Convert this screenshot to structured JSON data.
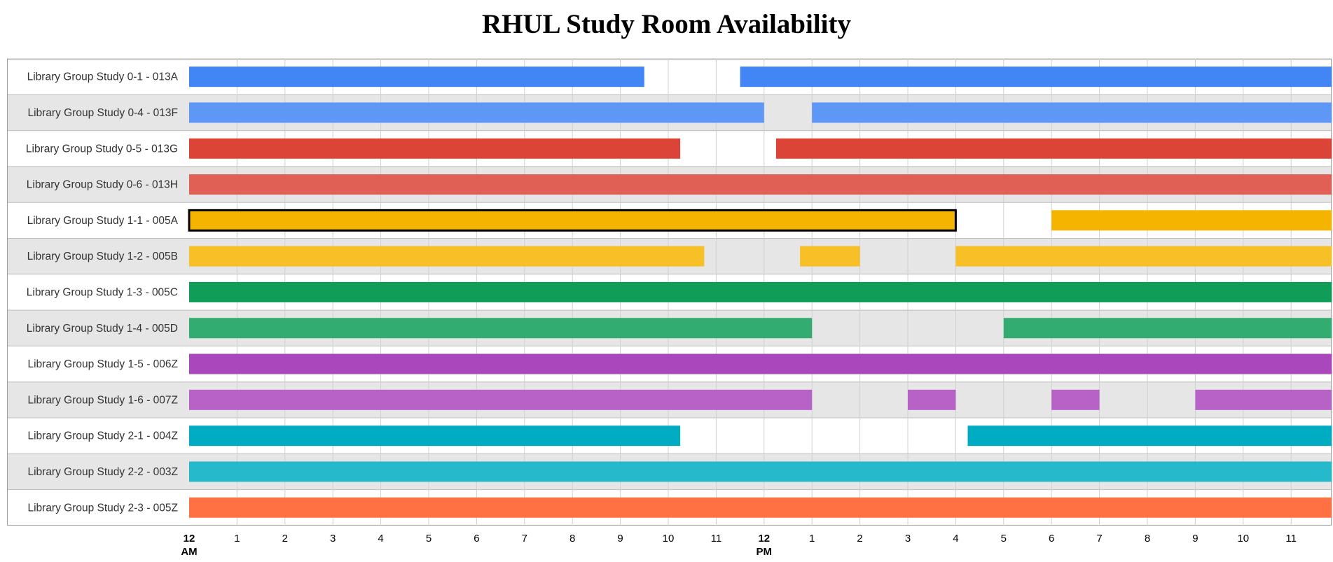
{
  "chart_data": {
    "type": "timeline",
    "title": "RHUL Study Room Availability",
    "x_range_hours": [
      0,
      24
    ],
    "tick_labels": [
      {
        "hour": 0,
        "label": "12",
        "sublabel": "AM",
        "bold": true
      },
      {
        "hour": 1,
        "label": "1"
      },
      {
        "hour": 2,
        "label": "2"
      },
      {
        "hour": 3,
        "label": "3"
      },
      {
        "hour": 4,
        "label": "4"
      },
      {
        "hour": 5,
        "label": "5"
      },
      {
        "hour": 6,
        "label": "6"
      },
      {
        "hour": 7,
        "label": "7"
      },
      {
        "hour": 8,
        "label": "8"
      },
      {
        "hour": 9,
        "label": "9"
      },
      {
        "hour": 10,
        "label": "10"
      },
      {
        "hour": 11,
        "label": "11"
      },
      {
        "hour": 12,
        "label": "12",
        "sublabel": "PM",
        "bold": true
      },
      {
        "hour": 13,
        "label": "1"
      },
      {
        "hour": 14,
        "label": "2"
      },
      {
        "hour": 15,
        "label": "3"
      },
      {
        "hour": 16,
        "label": "4"
      },
      {
        "hour": 17,
        "label": "5"
      },
      {
        "hour": 18,
        "label": "6"
      },
      {
        "hour": 19,
        "label": "7"
      },
      {
        "hour": 20,
        "label": "8"
      },
      {
        "hour": 21,
        "label": "9"
      },
      {
        "hour": 22,
        "label": "10"
      },
      {
        "hour": 23,
        "label": "11"
      }
    ],
    "rows": [
      {
        "label": "Library Group Study 0-1 - 013A",
        "color": "#4285f4",
        "bars": [
          [
            0,
            9.5
          ],
          [
            11.5,
            23.85
          ]
        ]
      },
      {
        "label": "Library Group Study 0-4 - 013F",
        "color": "#5e97f6",
        "bars": [
          [
            0,
            12
          ],
          [
            13,
            23.85
          ]
        ]
      },
      {
        "label": "Library Group Study 0-5 - 013G",
        "color": "#db4437",
        "bars": [
          [
            0,
            10.25
          ],
          [
            12.25,
            23.85
          ]
        ]
      },
      {
        "label": "Library Group Study 0-6 - 013H",
        "color": "#e06055",
        "bars": [
          [
            0,
            23.85
          ]
        ]
      },
      {
        "label": "Library Group Study 1-1 - 005A",
        "color": "#f4b400",
        "bars": [
          [
            0,
            16,
            true
          ],
          [
            18,
            23.85
          ]
        ]
      },
      {
        "label": "Library Group Study 1-2 - 005B",
        "color": "#f6c026",
        "bars": [
          [
            0,
            10.75
          ],
          [
            12.75,
            14
          ],
          [
            16,
            23.85
          ]
        ]
      },
      {
        "label": "Library Group Study 1-3 - 005C",
        "color": "#0f9d58",
        "bars": [
          [
            0,
            23.85
          ]
        ]
      },
      {
        "label": "Library Group Study 1-4 - 005D",
        "color": "#33ac71",
        "bars": [
          [
            0,
            13
          ],
          [
            17,
            23.85
          ]
        ]
      },
      {
        "label": "Library Group Study 1-5 - 006Z",
        "color": "#ab47bc",
        "bars": [
          [
            0,
            23.85
          ]
        ]
      },
      {
        "label": "Library Group Study 1-6 - 007Z",
        "color": "#b762c6",
        "bars": [
          [
            0,
            13
          ],
          [
            15,
            16
          ],
          [
            18,
            19
          ],
          [
            21,
            23.85
          ]
        ]
      },
      {
        "label": "Library Group Study 2-1 - 004Z",
        "color": "#00acc1",
        "bars": [
          [
            0,
            10.25
          ],
          [
            16.25,
            23.85
          ]
        ]
      },
      {
        "label": "Library Group Study 2-2 - 003Z",
        "color": "#26b8cb",
        "bars": [
          [
            0,
            23.85
          ]
        ]
      },
      {
        "label": "Library Group Study 2-3 - 005Z",
        "color": "#ff7043",
        "bars": [
          [
            0,
            23.85
          ]
        ]
      }
    ]
  }
}
